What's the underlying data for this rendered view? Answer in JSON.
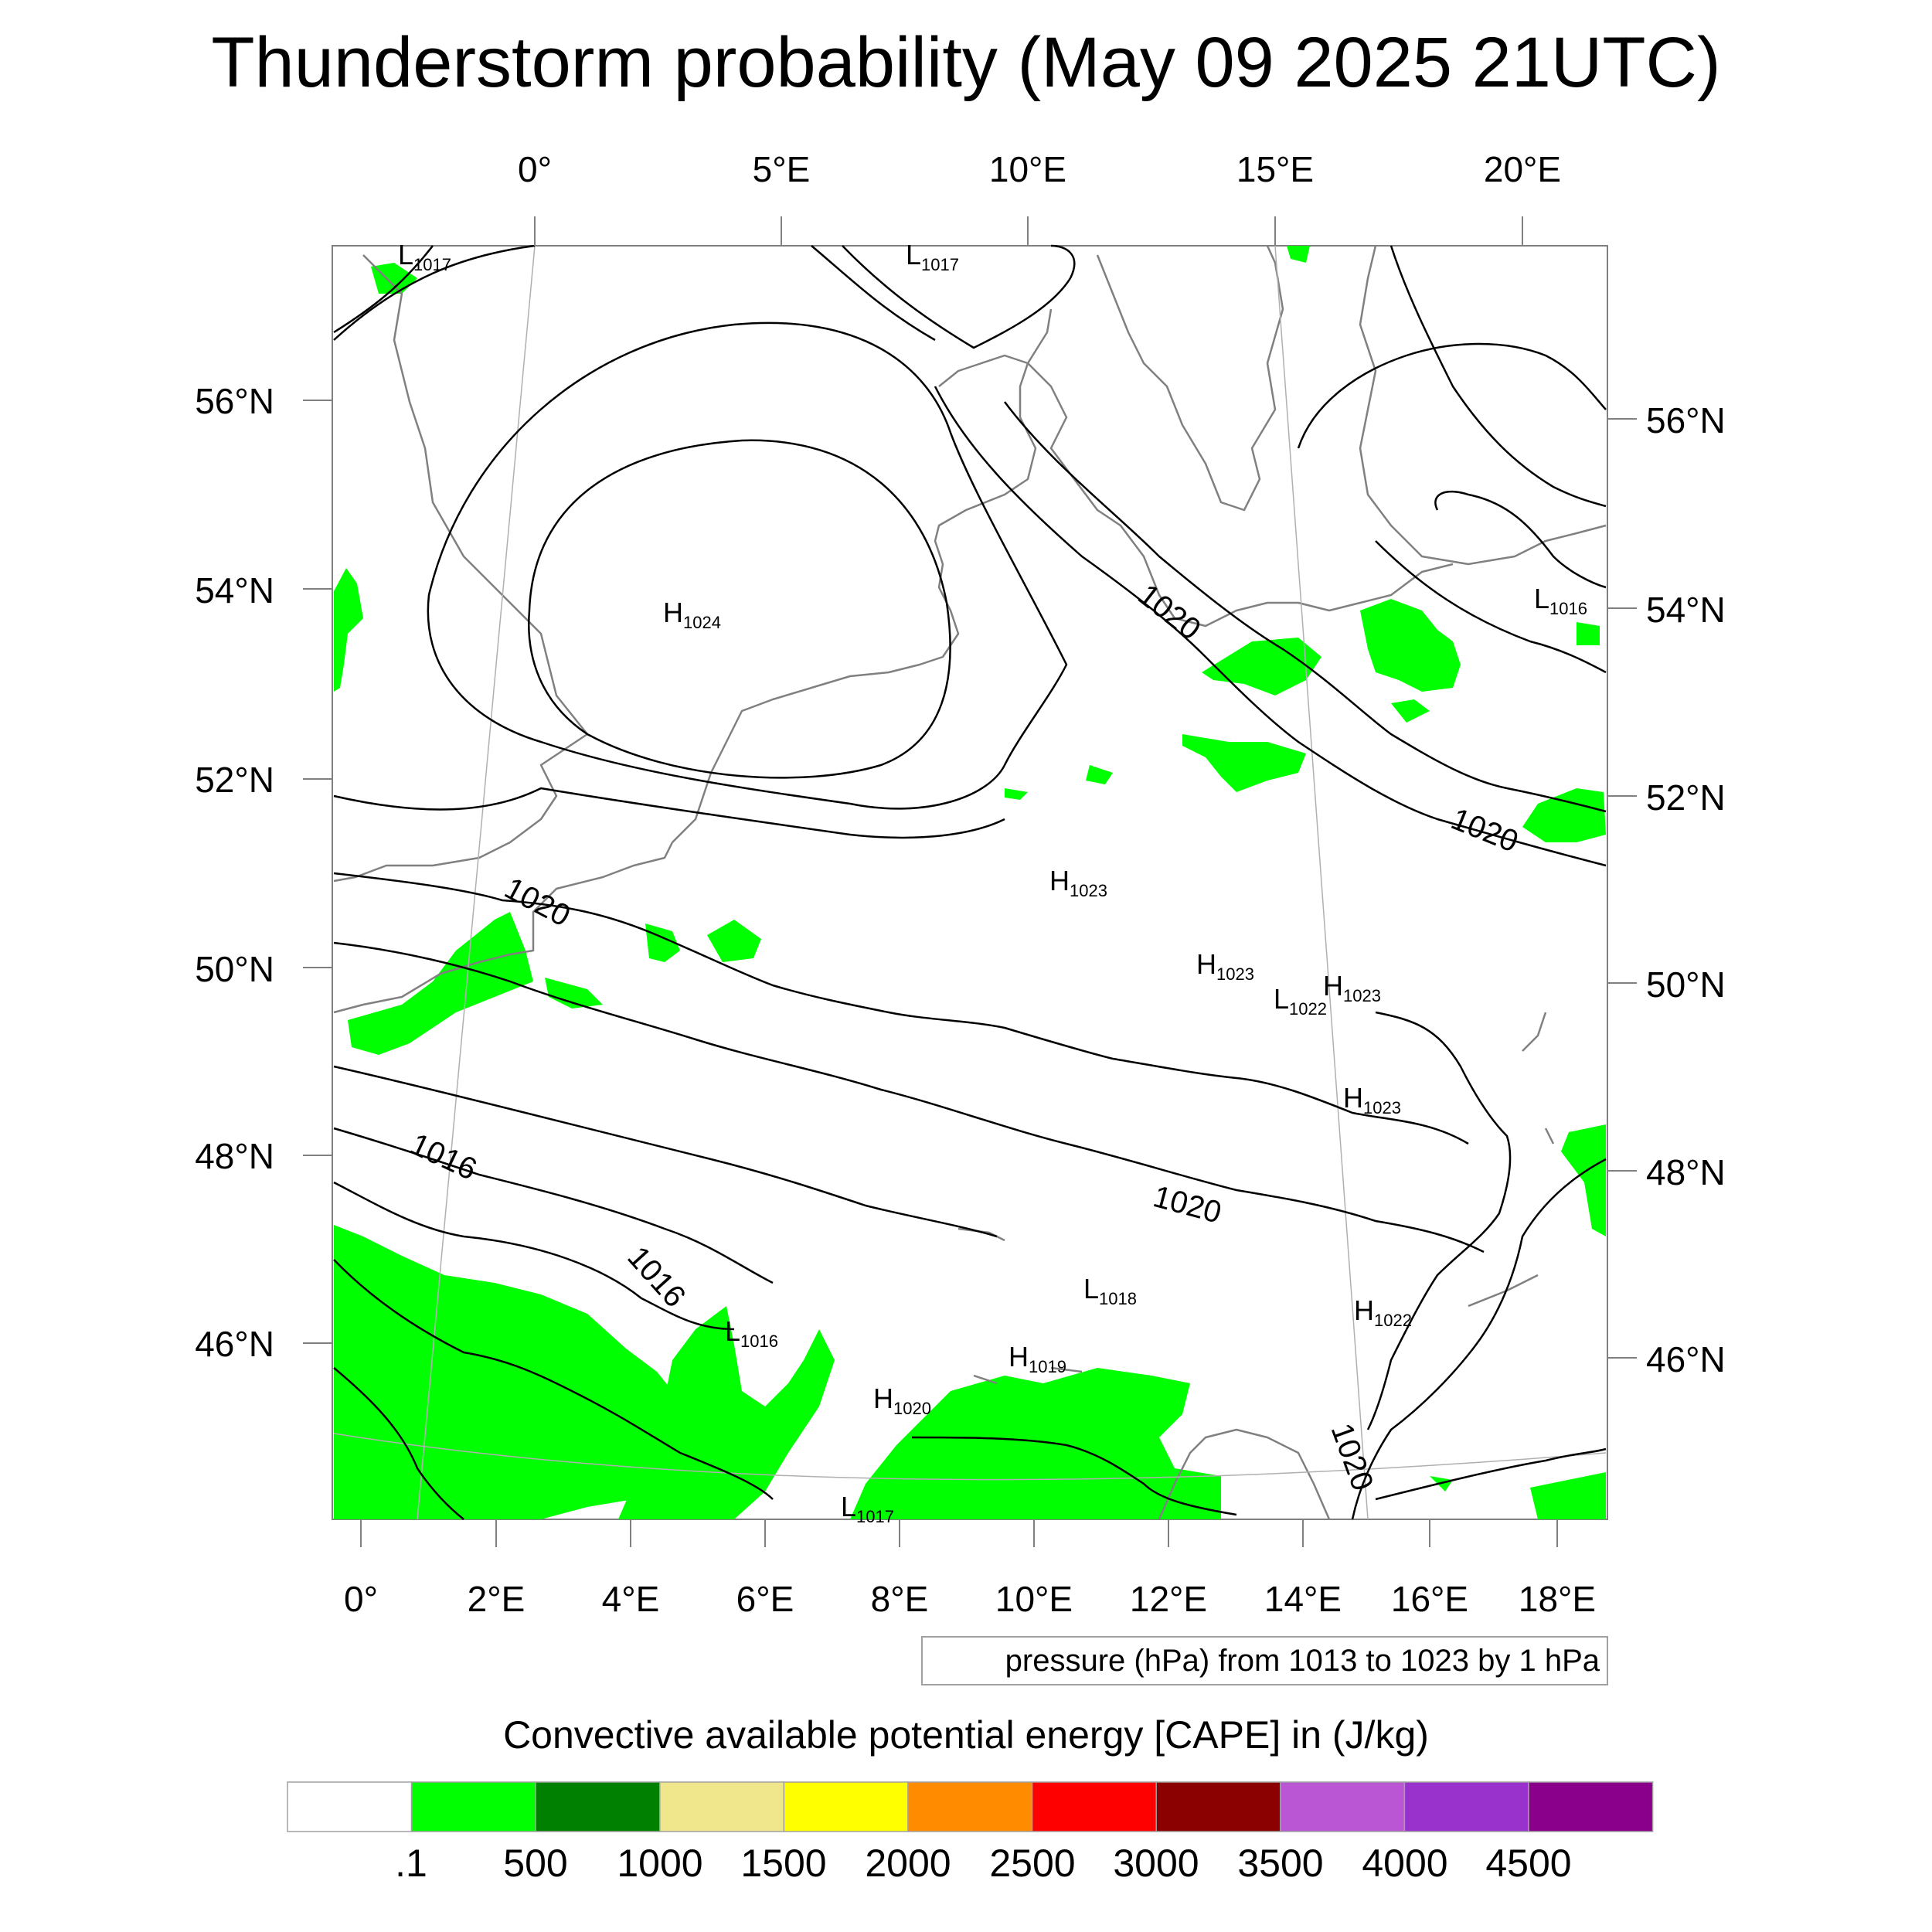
{
  "title": "Thunderstorm probability (May 09 2025 21UTC)",
  "top_lon_labels": [
    "0°",
    "5°E",
    "10°E",
    "15°E",
    "20°E"
  ],
  "bottom_lon_labels": [
    "0°",
    "2°E",
    "4°E",
    "6°E",
    "8°E",
    "10°E",
    "12°E",
    "14°E",
    "16°E",
    "18°E"
  ],
  "left_lat_labels": [
    "56°N",
    "54°N",
    "52°N",
    "50°N",
    "48°N",
    "46°N"
  ],
  "right_lat_labels": [
    "56°N",
    "54°N",
    "52°N",
    "50°N",
    "48°N",
    "46°N"
  ],
  "pressure_centers": [
    {
      "type": "L",
      "value": "1017"
    },
    {
      "type": "L",
      "value": "1017"
    },
    {
      "type": "H",
      "value": "1024"
    },
    {
      "type": "L",
      "value": "1016"
    },
    {
      "type": "H",
      "value": "1023"
    },
    {
      "type": "H",
      "value": "1023"
    },
    {
      "type": "L",
      "value": "1022"
    },
    {
      "type": "H",
      "value": "1023"
    },
    {
      "type": "H",
      "value": "1023"
    },
    {
      "type": "L",
      "value": "1018"
    },
    {
      "type": "H",
      "value": "1022"
    },
    {
      "type": "L",
      "value": "1016"
    },
    {
      "type": "H",
      "value": "1019"
    },
    {
      "type": "H",
      "value": "1020"
    },
    {
      "type": "L",
      "value": "1017"
    }
  ],
  "contour_labels": [
    "1020",
    "1020",
    "1020",
    "1016",
    "1016",
    "1020",
    "1020"
  ],
  "contour_info": "pressure (hPa) from 1013 to 1023 by 1 hPa",
  "colorbar": {
    "title": "Convective available potential energy [CAPE] in (J/kg)",
    "tick_labels": [
      ".1",
      "500",
      "1000",
      "1500",
      "2000",
      "2500",
      "3000",
      "3500",
      "4000",
      "4500"
    ],
    "colors": [
      "#ffffff",
      "#00ff00",
      "#008000",
      "#f0e68c",
      "#ffff00",
      "#ff8c00",
      "#ff0000",
      "#8b0000",
      "#ba55d3",
      "#9932cc",
      "#8b008b"
    ]
  },
  "colors": {
    "cape_fill": "#00ff00",
    "coastline": "#808080",
    "isobar": "#000000",
    "frame": "#808080"
  }
}
